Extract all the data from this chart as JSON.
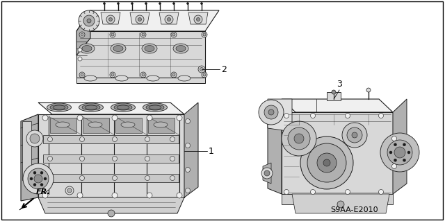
{
  "background_color": "#ffffff",
  "border_color": "#000000",
  "label_1": "1",
  "label_2": "2",
  "label_3": "3",
  "fr_label": "FR.",
  "part_number": "S9AA-E2010",
  "fig_width": 6.4,
  "fig_height": 3.19,
  "dpi": 100,
  "line_color": "#000000",
  "label_font_size": 9,
  "part_number_font_size": 8,
  "fr_font_size": 8,
  "draw_color": "#1a1a1a",
  "shade_light": "#f0f0f0",
  "shade_mid": "#d8d8d8",
  "shade_dark": "#b0b0b0",
  "shade_darker": "#909090"
}
